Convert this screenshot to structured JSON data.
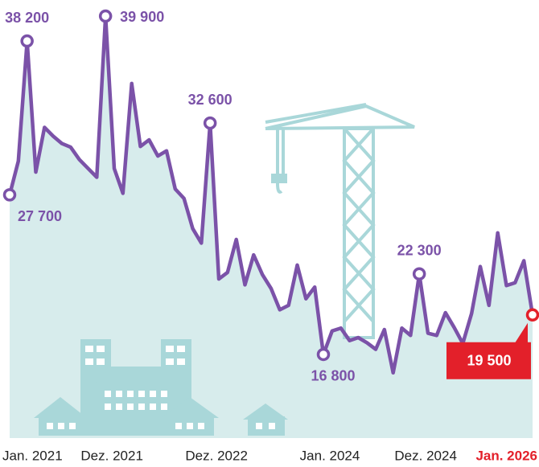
{
  "chart_data": {
    "type": "area-line",
    "categories": [
      "Jan. 2021",
      null,
      null,
      null,
      null,
      null,
      null,
      null,
      null,
      null,
      null,
      "Dez. 2021",
      null,
      null,
      null,
      null,
      null,
      null,
      null,
      null,
      null,
      null,
      null,
      "Dez. 2022",
      null,
      null,
      null,
      null,
      null,
      null,
      null,
      null,
      null,
      null,
      null,
      null,
      "Jan. 2024",
      null,
      null,
      null,
      null,
      null,
      null,
      null,
      null,
      null,
      null,
      "Dez. 2024",
      null,
      null,
      null,
      null,
      null,
      null,
      null,
      null,
      null,
      null,
      null,
      null,
      "Jan. 2026"
    ],
    "values": [
      27700,
      30000,
      38200,
      29250,
      32300,
      31700,
      31200,
      30950,
      30100,
      29500,
      28900,
      39900,
      29500,
      27800,
      35300,
      31000,
      31450,
      30350,
      30700,
      28100,
      27450,
      25400,
      24400,
      32600,
      21950,
      22400,
      24650,
      21550,
      23600,
      22250,
      21300,
      19850,
      20150,
      22900,
      20600,
      21400,
      16800,
      18400,
      18600,
      17750,
      17950,
      17600,
      17150,
      18500,
      15550,
      18600,
      18100,
      22300,
      18250,
      18100,
      19650,
      18650,
      17550,
      19600,
      22800,
      20150,
      25100,
      21500,
      21700,
      23200,
      19500
    ],
    "value_labels": [
      "27 700",
      null,
      "38 200",
      null,
      null,
      null,
      null,
      null,
      null,
      null,
      null,
      "39 900",
      null,
      null,
      null,
      null,
      null,
      null,
      null,
      null,
      null,
      null,
      null,
      "32 600",
      null,
      null,
      null,
      null,
      null,
      null,
      null,
      null,
      null,
      null,
      null,
      null,
      "16 800",
      null,
      null,
      null,
      null,
      null,
      null,
      null,
      null,
      null,
      null,
      "22 300",
      null,
      null,
      null,
      null,
      null,
      null,
      null,
      null,
      null,
      null,
      null,
      null,
      "19 500"
    ],
    "ylim": [
      14000,
      41000
    ],
    "color": "#7b52a8",
    "area_color": "#d7ecec",
    "highlight_color": "#e3202a"
  }
}
